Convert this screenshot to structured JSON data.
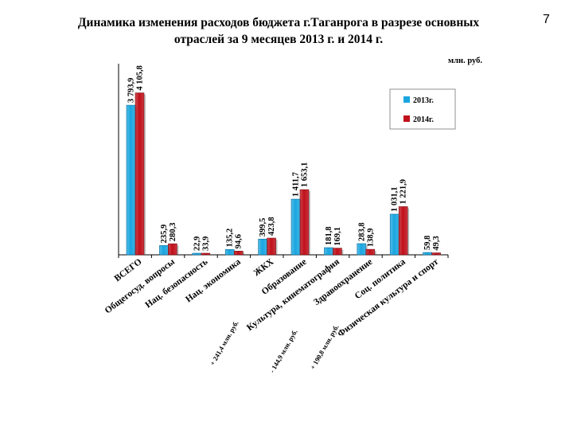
{
  "header": {
    "title_line1": "Динамика изменения расходов бюджета г.Таганрога в разрезе основных",
    "title_line2": "отраслей за 9 месяцев 2013 г. и 2014 г.",
    "page_number": "7",
    "unit": "млн. руб."
  },
  "colors": {
    "series_2013": "#1aa6e0",
    "series_2014": "#c0101a"
  },
  "chart_data": {
    "type": "bar",
    "title": "Динамика изменения расходов бюджета г.Таганрога в разрезе основных отраслей за 9 месяцев 2013 г. и 2014 г.",
    "unit": "млн. руб.",
    "categories": [
      "ВСЕГО",
      "Общегосуд. вопросы",
      "Нац. безопасность",
      "Нац. экономика",
      "ЖКХ",
      "Образование",
      "Культура, кинематография",
      "Здравоохранение",
      "Соц. политика",
      "Физическая культура и спорт"
    ],
    "series": [
      {
        "name": "2013г.",
        "values": [
          3793.9,
          235.9,
          22.9,
          135.2,
          399.5,
          1411.7,
          181.8,
          283.8,
          1031.1,
          59.8
        ],
        "labels": [
          "3 793,9",
          "235,9",
          "22,9",
          "135,2",
          "399,5",
          "1 411,7",
          "181,8",
          "283,8",
          "1 031,1",
          "59,8"
        ]
      },
      {
        "name": "2014г.",
        "values": [
          4105.8,
          280.3,
          33.9,
          94.6,
          423.8,
          1653.1,
          169.1,
          138.9,
          1221.9,
          49.3
        ],
        "labels": [
          "4 105,8",
          "280,3",
          "33,9",
          "94,6",
          "423,8",
          "1 653,1",
          "169,1",
          "138,9",
          "1 221,9",
          "49,3"
        ]
      }
    ],
    "annotations": [
      "+ 241,4 млн. руб.",
      "- 144,9 млн. руб.",
      "+ 190,8 млн. руб."
    ],
    "ylim": [
      0,
      4200
    ],
    "legend_position": "top-right",
    "grid": false
  }
}
